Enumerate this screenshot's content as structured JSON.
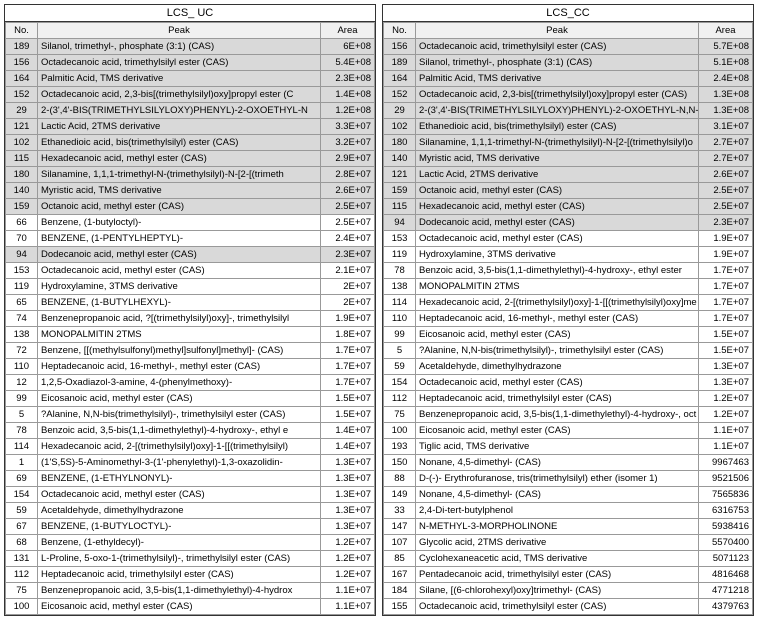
{
  "left": {
    "title": "LCS_ UC",
    "columns": [
      "No.",
      "Peak",
      "Area"
    ],
    "rows": [
      {
        "no": "189",
        "peak": "Silanol, trimethyl-, phosphate (3:1) (CAS)",
        "area": "6E+08",
        "hl": true
      },
      {
        "no": "156",
        "peak": "Octadecanoic acid, trimethylsilyl ester (CAS)",
        "area": "5.4E+08",
        "hl": true
      },
      {
        "no": "164",
        "peak": "Palmitic Acid, TMS derivative",
        "area": "2.3E+08",
        "hl": true
      },
      {
        "no": "152",
        "peak": "Octadecanoic acid, 2,3-bis[(trimethylsilyl)oxy]propyl ester (C",
        "area": "1.4E+08",
        "hl": true
      },
      {
        "no": "29",
        "peak": "2-(3',4'-BIS(TRIMETHYLSILYLOXY)PHENYL)-2-OXOETHYL-N",
        "area": "1.2E+08",
        "hl": true
      },
      {
        "no": "121",
        "peak": "Lactic Acid, 2TMS derivative",
        "area": "3.3E+07",
        "hl": true
      },
      {
        "no": "102",
        "peak": "Ethanedioic acid, bis(trimethylsilyl) ester (CAS)",
        "area": "3.2E+07",
        "hl": true
      },
      {
        "no": "115",
        "peak": "Hexadecanoic acid, methyl ester (CAS)",
        "area": "2.9E+07",
        "hl": true
      },
      {
        "no": "180",
        "peak": "Silanamine, 1,1,1-trimethyl-N-(trimethylsilyl)-N-[2-[(trimeth",
        "area": "2.8E+07",
        "hl": true
      },
      {
        "no": "140",
        "peak": "Myristic acid, TMS derivative",
        "area": "2.6E+07",
        "hl": true
      },
      {
        "no": "159",
        "peak": "Octanoic acid, methyl ester (CAS)",
        "area": "2.5E+07",
        "hl": true
      },
      {
        "no": "66",
        "peak": "Benzene, (1-butyloctyl)-",
        "area": "2.5E+07",
        "hl": false
      },
      {
        "no": "70",
        "peak": "BENZENE, (1-PENTYLHEPTYL)-",
        "area": "2.4E+07",
        "hl": false
      },
      {
        "no": "94",
        "peak": "Dodecanoic acid, methyl ester (CAS)",
        "area": "2.3E+07",
        "hl": true
      },
      {
        "no": "153",
        "peak": "Octadecanoic acid, methyl ester (CAS)",
        "area": "2.1E+07",
        "hl": false
      },
      {
        "no": "119",
        "peak": "Hydroxylamine, 3TMS derivative",
        "area": "2E+07",
        "hl": false
      },
      {
        "no": "65",
        "peak": "BENZENE, (1-BUTYLHEXYL)-",
        "area": "2E+07",
        "hl": false
      },
      {
        "no": "74",
        "peak": "Benzenepropanoic acid, ?[(trimethylsilyl)oxy]-, trimethylsilyl",
        "area": "1.9E+07",
        "hl": false
      },
      {
        "no": "138",
        "peak": "MONOPALMITIN 2TMS",
        "area": "1.8E+07",
        "hl": false
      },
      {
        "no": "72",
        "peak": "Benzene, [[(methylsulfonyl)methyl]sulfonyl]methyl]- (CAS)",
        "area": "1.7E+07",
        "hl": false
      },
      {
        "no": "110",
        "peak": "Heptadecanoic acid, 16-methyl-, methyl ester (CAS)",
        "area": "1.7E+07",
        "hl": false
      },
      {
        "no": "12",
        "peak": "1,2,5-Oxadiazol-3-amine, 4-(phenylmethoxy)-",
        "area": "1.7E+07",
        "hl": false
      },
      {
        "no": "99",
        "peak": "Eicosanoic acid, methyl ester (CAS)",
        "area": "1.5E+07",
        "hl": false
      },
      {
        "no": "5",
        "peak": "?Alanine, N,N-bis(trimethylsilyl)-, trimethylsilyl ester (CAS)",
        "area": "1.5E+07",
        "hl": false
      },
      {
        "no": "78",
        "peak": "Benzoic acid, 3,5-bis(1,1-dimethylethyl)-4-hydroxy-, ethyl e",
        "area": "1.4E+07",
        "hl": false
      },
      {
        "no": "114",
        "peak": "Hexadecanoic acid, 2-[(trimethylsilyl)oxy]-1-[[(trimethylsilyl)",
        "area": "1.4E+07",
        "hl": false
      },
      {
        "no": "1",
        "peak": "(1'S,5S)-5-Aminomethyl-3-(1'-phenylethyl)-1,3-oxazolidin-",
        "area": "1.3E+07",
        "hl": false
      },
      {
        "no": "69",
        "peak": "BENZENE, (1-ETHYLNONYL)-",
        "area": "1.3E+07",
        "hl": false
      },
      {
        "no": "154",
        "peak": "Octadecanoic acid, methyl ester (CAS)",
        "area": "1.3E+07",
        "hl": false
      },
      {
        "no": "59",
        "peak": "Acetaldehyde, dimethylhydrazone",
        "area": "1.3E+07",
        "hl": false
      },
      {
        "no": "67",
        "peak": "BENZENE, (1-BUTYLOCTYL)-",
        "area": "1.3E+07",
        "hl": false
      },
      {
        "no": "68",
        "peak": "Benzene, (1-ethyldecyl)-",
        "area": "1.2E+07",
        "hl": false
      },
      {
        "no": "131",
        "peak": "L-Proline, 5-oxo-1-(trimethylsilyl)-, trimethylsilyl ester (CAS)",
        "area": "1.2E+07",
        "hl": false
      },
      {
        "no": "112",
        "peak": "Heptadecanoic acid, trimethylsilyl ester (CAS)",
        "area": "1.2E+07",
        "hl": false
      },
      {
        "no": "75",
        "peak": "Benzenepropanoic acid, 3,5-bis(1,1-dimethylethyl)-4-hydrox",
        "area": "1.1E+07",
        "hl": false
      },
      {
        "no": "100",
        "peak": "Eicosanoic acid, methyl ester (CAS)",
        "area": "1.1E+07",
        "hl": false
      }
    ]
  },
  "right": {
    "title": "LCS_CC",
    "columns": [
      "No.",
      "Peak",
      "Area"
    ],
    "rows": [
      {
        "no": "156",
        "peak": "Octadecanoic acid, trimethylsilyl ester (CAS)",
        "area": "5.7E+08",
        "hl": true
      },
      {
        "no": "189",
        "peak": "Silanol, trimethyl-, phosphate (3:1) (CAS)",
        "area": "5.1E+08",
        "hl": true
      },
      {
        "no": "164",
        "peak": "Palmitic Acid, TMS derivative",
        "area": "2.4E+08",
        "hl": true
      },
      {
        "no": "152",
        "peak": "Octadecanoic acid, 2,3-bis[(trimethylsilyl)oxy]propyl ester (CAS)",
        "area": "1.3E+08",
        "hl": true
      },
      {
        "no": "29",
        "peak": "2-(3',4'-BIS(TRIMETHYLSILYLOXY)PHENYL)-2-OXOETHYL-N,N-BIS(T",
        "area": "1.3E+08",
        "hl": true
      },
      {
        "no": "102",
        "peak": "Ethanedioic acid, bis(trimethylsilyl) ester (CAS)",
        "area": "3.1E+07",
        "hl": true
      },
      {
        "no": "180",
        "peak": "Silanamine, 1,1,1-trimethyl-N-(trimethylsilyl)-N-[2-[(trimethylsilyl)o",
        "area": "2.7E+07",
        "hl": true
      },
      {
        "no": "140",
        "peak": "Myristic acid, TMS derivative",
        "area": "2.7E+07",
        "hl": true
      },
      {
        "no": "121",
        "peak": "Lactic Acid, 2TMS derivative",
        "area": "2.6E+07",
        "hl": true
      },
      {
        "no": "159",
        "peak": "Octanoic acid, methyl ester (CAS)",
        "area": "2.5E+07",
        "hl": true
      },
      {
        "no": "115",
        "peak": "Hexadecanoic acid, methyl ester (CAS)",
        "area": "2.5E+07",
        "hl": true
      },
      {
        "no": "94",
        "peak": "Dodecanoic acid, methyl ester (CAS)",
        "area": "2.3E+07",
        "hl": true
      },
      {
        "no": "153",
        "peak": "Octadecanoic acid, methyl ester (CAS)",
        "area": "1.9E+07",
        "hl": false
      },
      {
        "no": "119",
        "peak": "Hydroxylamine, 3TMS derivative",
        "area": "1.9E+07",
        "hl": false
      },
      {
        "no": "78",
        "peak": "Benzoic acid, 3,5-bis(1,1-dimethylethyl)-4-hydroxy-, ethyl ester",
        "area": "1.7E+07",
        "hl": false
      },
      {
        "no": "138",
        "peak": "MONOPALMITIN 2TMS",
        "area": "1.7E+07",
        "hl": false
      },
      {
        "no": "114",
        "peak": "Hexadecanoic acid, 2-[(trimethylsilyl)oxy]-1-[[(trimethylsilyl)oxy]me",
        "area": "1.7E+07",
        "hl": false
      },
      {
        "no": "110",
        "peak": "Heptadecanoic acid, 16-methyl-, methyl ester (CAS)",
        "area": "1.7E+07",
        "hl": false
      },
      {
        "no": "99",
        "peak": "Eicosanoic acid, methyl ester (CAS)",
        "area": "1.5E+07",
        "hl": false
      },
      {
        "no": "5",
        "peak": "?Alanine, N,N-bis(trimethylsilyl)-, trimethylsilyl ester (CAS)",
        "area": "1.5E+07",
        "hl": false
      },
      {
        "no": "59",
        "peak": "Acetaldehyde, dimethylhydrazone",
        "area": "1.3E+07",
        "hl": false
      },
      {
        "no": "154",
        "peak": "Octadecanoic acid, methyl ester (CAS)",
        "area": "1.3E+07",
        "hl": false
      },
      {
        "no": "112",
        "peak": "Heptadecanoic acid, trimethylsilyl ester (CAS)",
        "area": "1.2E+07",
        "hl": false
      },
      {
        "no": "75",
        "peak": "Benzenepropanoic acid, 3,5-bis(1,1-dimethylethyl)-4-hydroxy-, oct",
        "area": "1.2E+07",
        "hl": false
      },
      {
        "no": "100",
        "peak": "Eicosanoic acid, methyl ester (CAS)",
        "area": "1.1E+07",
        "hl": false
      },
      {
        "no": "193",
        "peak": "Tiglic acid, TMS derivative",
        "area": "1.1E+07",
        "hl": false
      },
      {
        "no": "150",
        "peak": "Nonane, 4,5-dimethyl- (CAS)",
        "area": "9967463",
        "hl": false
      },
      {
        "no": "88",
        "peak": "D-(-)- Erythrofuranose, tris(trimethylsilyl) ether (isomer 1)",
        "area": "9521506",
        "hl": false
      },
      {
        "no": "149",
        "peak": "Nonane, 4,5-dimethyl- (CAS)",
        "area": "7565836",
        "hl": false
      },
      {
        "no": "33",
        "peak": "2,4-Di-tert-butylphenol",
        "area": "6316753",
        "hl": false
      },
      {
        "no": "147",
        "peak": "N-METHYL-3-MORPHOLINONE",
        "area": "5938416",
        "hl": false
      },
      {
        "no": "107",
        "peak": "Glycolic acid, 2TMS derivative",
        "area": "5570400",
        "hl": false
      },
      {
        "no": "85",
        "peak": "Cyclohexaneacetic acid, TMS derivative",
        "area": "5071123",
        "hl": false
      },
      {
        "no": "167",
        "peak": "Pentadecanoic acid, trimethylsilyl ester (CAS)",
        "area": "4816468",
        "hl": false
      },
      {
        "no": "184",
        "peak": "Silane, [(6-chlorohexyl)oxy]trimethyl- (CAS)",
        "area": "4771218",
        "hl": false
      },
      {
        "no": "155",
        "peak": "Octadecanoic acid, trimethylsilyl ester (CAS)",
        "area": "4379763",
        "hl": false
      }
    ]
  }
}
